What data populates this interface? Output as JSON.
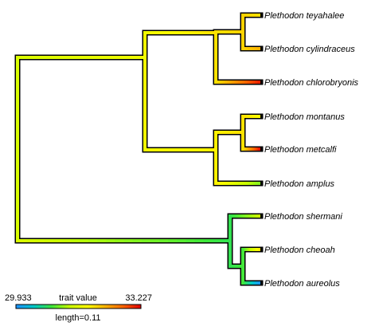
{
  "tree": {
    "tips": [
      {
        "label": "Plethodon teyahalee",
        "value": 32.0
      },
      {
        "label": "Plethodon cylindraceus",
        "value": 32.3
      },
      {
        "label": "Plethodon chlorobryonis",
        "value": 33.1
      },
      {
        "label": "Plethodon montanus",
        "value": 31.8
      },
      {
        "label": "Plethodon metcalfi",
        "value": 33.2
      },
      {
        "label": "Plethodon amplus",
        "value": 31.1
      },
      {
        "label": "Plethodon shermani",
        "value": 31.4
      },
      {
        "label": "Plethodon cheoah",
        "value": 32.0
      },
      {
        "label": "Plethodon aureolus",
        "value": 29.95
      }
    ],
    "nodes": {
      "root": 31.5,
      "n_main": 31.7,
      "n_top": 32.0,
      "n_tc": 32.1,
      "n_mma": 31.9,
      "n_mm": 32.0,
      "n_low": 30.8,
      "n_ca": 30.9
    }
  },
  "legend": {
    "min_label": "29.933",
    "max_label": "33.227",
    "title": "trait value",
    "min": 29.933,
    "max": 33.227,
    "scale_label": "length=0.11"
  },
  "colors": {
    "outline": "#000000",
    "ramp": [
      "#1e90ff",
      "#00c8c8",
      "#3ce63c",
      "#c8ff00",
      "#ffff00",
      "#ffb400",
      "#ff6400",
      "#e00000"
    ]
  }
}
